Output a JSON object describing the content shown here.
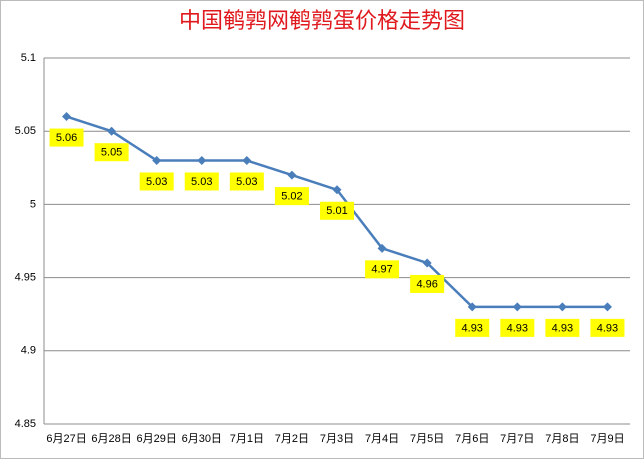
{
  "chart_data": {
    "type": "line",
    "title": "中国鹌鹑网鹌鹑蛋价格走势图",
    "categories": [
      "6月27日",
      "6月28日",
      "6月29日",
      "6月30日",
      "7月1日",
      "7月2日",
      "7月3日",
      "7月4日",
      "7月5日",
      "7月6日",
      "7月7日",
      "7月8日",
      "7月9日"
    ],
    "values": [
      5.06,
      5.05,
      5.03,
      5.03,
      5.03,
      5.02,
      5.01,
      4.97,
      4.96,
      4.93,
      4.93,
      4.93,
      4.93
    ],
    "color": "#4a7ebb",
    "label_color": "#ffff00",
    "ylim": [
      4.85,
      5.1
    ],
    "yticks": [
      4.85,
      4.9,
      4.95,
      5,
      5.05,
      5.1
    ],
    "grid": true
  }
}
